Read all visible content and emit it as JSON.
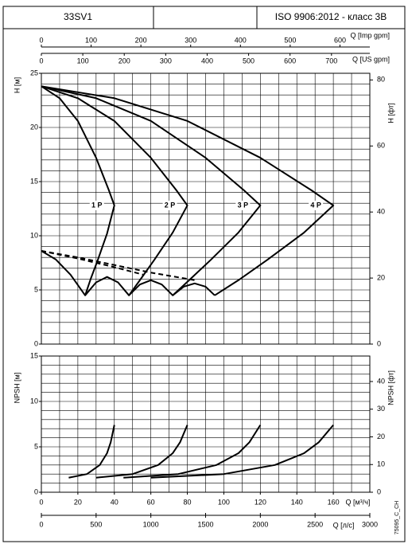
{
  "header": {
    "model": "33SV1",
    "standard": "ISO 9906:2012 - класс 3B"
  },
  "code": "75095_C_CH",
  "chart_data": [
    {
      "type": "line",
      "ylabel": "H [м]",
      "y2label": "H [фт]",
      "xlim": [
        0,
        180
      ],
      "ylim": [
        0,
        25
      ],
      "yticks": [
        0,
        5,
        10,
        15,
        20,
        25
      ],
      "y2lim": [
        0,
        82.02
      ],
      "y2ticks": [
        0,
        20,
        40,
        60,
        80
      ],
      "grid_x": [
        0,
        10,
        20,
        30,
        40,
        50,
        60,
        70,
        80,
        90,
        100,
        110,
        120,
        130,
        140,
        150,
        160,
        170,
        180
      ],
      "grid_y": [
        0,
        1,
        2,
        3,
        4,
        5,
        6,
        7,
        8,
        9,
        10,
        11,
        12,
        13,
        14,
        15,
        16,
        17,
        18,
        19,
        20,
        21,
        22,
        23,
        24,
        25
      ],
      "top_axes": [
        {
          "label": "Q [Imp gpm]",
          "xlim": [
            0,
            660
          ],
          "xticks": [
            0,
            100,
            200,
            300,
            400,
            500,
            600
          ]
        },
        {
          "label": "Q [US gpm]",
          "xlim": [
            0,
            792.5
          ],
          "xticks": [
            0,
            100,
            200,
            300,
            400,
            500,
            600,
            700
          ]
        }
      ],
      "series": [
        {
          "name": "1 P",
          "color": "#000000",
          "x": [
            0,
            10,
            20,
            30,
            37,
            40,
            36,
            31,
            27,
            24
          ],
          "values": [
            23.8,
            22.7,
            20.6,
            17.2,
            14.2,
            12.8,
            10.2,
            7.8,
            6.0,
            4.5
          ]
        },
        {
          "name": "2 P",
          "color": "#000000",
          "x": [
            0,
            20,
            40,
            60,
            74,
            80,
            72,
            62,
            54,
            48
          ],
          "values": [
            23.8,
            22.7,
            20.6,
            17.2,
            14.2,
            12.8,
            10.3,
            7.8,
            5.9,
            4.5
          ]
        },
        {
          "name": "3 P",
          "color": "#000000",
          "x": [
            0,
            30,
            60,
            90,
            111,
            120,
            108,
            93,
            81,
            72
          ],
          "values": [
            23.8,
            22.7,
            20.6,
            17.2,
            14.2,
            12.8,
            10.3,
            7.8,
            5.9,
            4.5
          ]
        },
        {
          "name": "4 P",
          "color": "#000000",
          "x": [
            0,
            40,
            80,
            120,
            148,
            160,
            144,
            124,
            108,
            95
          ],
          "values": [
            23.8,
            22.7,
            20.6,
            17.2,
            14.2,
            12.8,
            10.3,
            7.8,
            5.9,
            4.5
          ]
        },
        {
          "color": "#000000",
          "x": [
            0,
            8,
            16,
            24,
            30,
            36,
            42,
            48,
            54,
            60,
            66,
            72,
            78,
            84,
            90,
            95
          ],
          "values": [
            8.6,
            7.8,
            6.4,
            4.5,
            5.7,
            6.2,
            5.7,
            4.5,
            5.5,
            5.9,
            5.5,
            4.5,
            5.3,
            5.6,
            5.3,
            4.5
          ]
        },
        {
          "color": "#000000",
          "style": "dashed",
          "x": [
            0,
            20,
            40,
            60,
            84
          ],
          "values": [
            8.6,
            8.0,
            7.3,
            6.6,
            5.9
          ]
        },
        {
          "color": "#000000",
          "style": "dashed",
          "x": [
            0,
            20,
            40,
            56
          ],
          "values": [
            8.6,
            7.9,
            7.1,
            6.4
          ]
        }
      ]
    },
    {
      "type": "line",
      "ylabel": "NPSH [м]",
      "y2label": "NPSH [фт]",
      "xlabel": "Q [м³/ч]",
      "xlim": [
        0,
        180
      ],
      "xticks": [
        0,
        20,
        40,
        60,
        80,
        100,
        120,
        140,
        160
      ],
      "ylim": [
        0,
        15
      ],
      "yticks": [
        0,
        5,
        10,
        15
      ],
      "y2lim": [
        0,
        49.21
      ],
      "y2ticks": [
        0,
        10,
        20,
        30,
        40
      ],
      "grid_x": [
        0,
        10,
        20,
        30,
        40,
        50,
        60,
        70,
        80,
        90,
        100,
        110,
        120,
        130,
        140,
        150,
        160,
        170,
        180
      ],
      "grid_y": [
        0,
        1,
        2,
        3,
        4,
        5,
        6,
        7,
        8,
        9,
        10,
        11,
        12,
        13,
        14,
        15
      ],
      "bottom_axes": [
        {
          "label": "Q [л/с]",
          "xlim": [
            0,
            3000
          ],
          "xticks": [
            0,
            500,
            1000,
            1500,
            2000,
            2500,
            3000
          ]
        }
      ],
      "series": [
        {
          "color": "#000000",
          "x": [
            15,
            25,
            32,
            36,
            38,
            40
          ],
          "values": [
            1.6,
            2.0,
            3.0,
            4.3,
            5.5,
            7.4
          ]
        },
        {
          "color": "#000000",
          "x": [
            30,
            50,
            64,
            72,
            76,
            80
          ],
          "values": [
            1.6,
            2.0,
            3.0,
            4.3,
            5.5,
            7.4
          ]
        },
        {
          "color": "#000000",
          "x": [
            45,
            75,
            96,
            108,
            114,
            120
          ],
          "values": [
            1.6,
            2.0,
            3.0,
            4.3,
            5.5,
            7.4
          ]
        },
        {
          "color": "#000000",
          "x": [
            60,
            100,
            128,
            144,
            152,
            160
          ],
          "values": [
            1.6,
            2.0,
            3.0,
            4.3,
            5.5,
            7.4
          ]
        }
      ]
    }
  ]
}
